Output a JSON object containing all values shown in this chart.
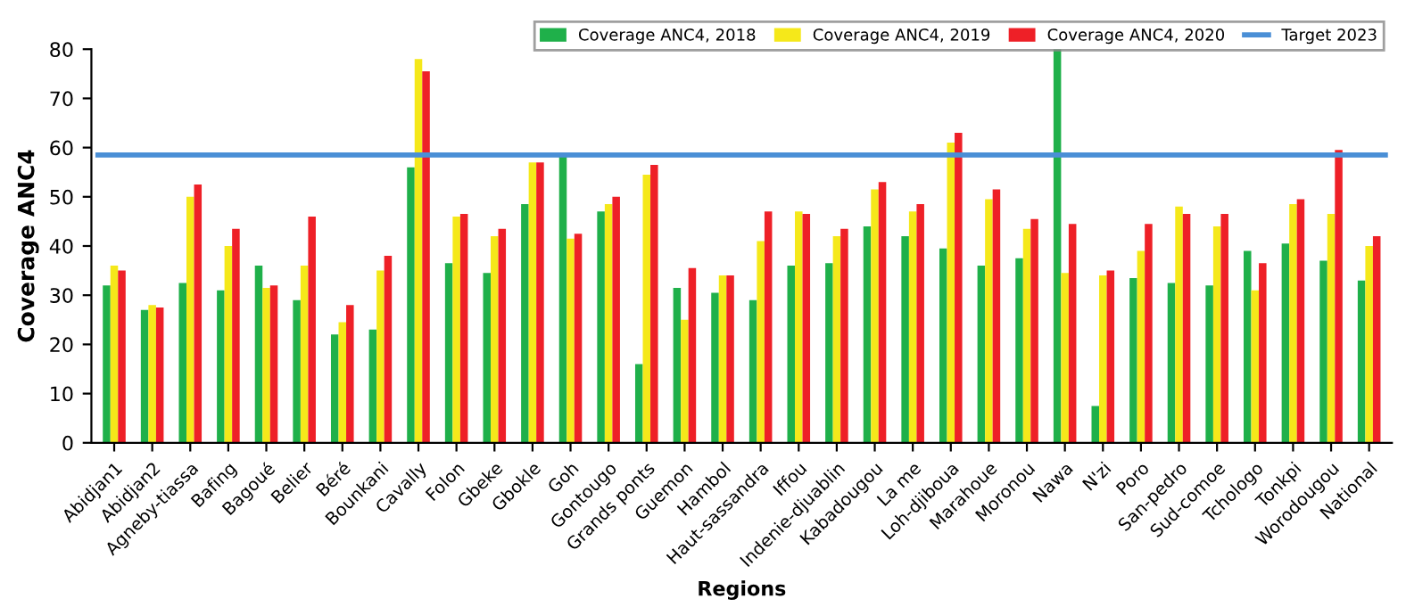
{
  "chart_data": {
    "type": "bar",
    "xlabel": "Regions",
    "ylabel": "Coverage ANC4",
    "categories": [
      "Abidjan1",
      "Abidjan2",
      "Agneby-tiassa",
      "Bafing",
      "Bagoué",
      "Belier",
      "Béré",
      "Bounkani",
      "Cavally",
      "Folon",
      "Gbeke",
      "Gbokle",
      "Goh",
      "Gontougo",
      "Grands ponts",
      "Guemon",
      "Hambol",
      "Haut-sassandra",
      "Iffou",
      "Indenie-djuablin",
      "Kabadougou",
      "La me",
      "Loh-djiboua",
      "Marahoue",
      "Moronou",
      "Nawa",
      "N'zi",
      "Poro",
      "San-pedro",
      "Sud-comoe",
      "Tchologo",
      "Tonkpi",
      "Worodougou",
      "National"
    ],
    "series": [
      {
        "name": "Coverage ANC4, 2018",
        "color": "#1fb04a",
        "values": [
          32,
          27,
          32.5,
          31,
          36,
          29,
          22,
          23,
          56,
          36.5,
          34.5,
          48.5,
          59,
          47,
          16,
          31.5,
          30.5,
          29,
          36,
          36.5,
          44,
          42,
          39.5,
          36,
          37.5,
          80,
          7.5,
          33.5,
          32.5,
          32,
          39,
          40.5,
          37,
          33
        ]
      },
      {
        "name": "Coverage ANC4, 2019",
        "color": "#f5e81a",
        "values": [
          36,
          28,
          50,
          40,
          31.5,
          36,
          24.5,
          35,
          78,
          46,
          42,
          57,
          41.5,
          48.5,
          54.5,
          25,
          34,
          41,
          47,
          42,
          51.5,
          47,
          61,
          49.5,
          43.5,
          34.5,
          34,
          39,
          48,
          44,
          31,
          48.5,
          46.5,
          40
        ]
      },
      {
        "name": "Coverage ANC4, 2020",
        "color": "#ee2027",
        "values": [
          35,
          27.5,
          52.5,
          43.5,
          32,
          46,
          28,
          38,
          75.5,
          46.5,
          43.5,
          57,
          42.5,
          50,
          56.5,
          35.5,
          34,
          47,
          46.5,
          43.5,
          53,
          48.5,
          63,
          51.5,
          45.5,
          44.5,
          35,
          44.5,
          46.5,
          46.5,
          36.5,
          49.5,
          59.5,
          42
        ]
      }
    ],
    "ref_lines": [
      {
        "axis": "y",
        "value": 58.5,
        "label": "Target 2023",
        "color": "#4a8fd6",
        "line_style": "solid"
      }
    ],
    "ylim": [
      0,
      80
    ],
    "yticks": [
      0,
      10,
      20,
      30,
      40,
      50,
      60,
      70,
      80
    ],
    "grid": false,
    "legend": "top right"
  }
}
